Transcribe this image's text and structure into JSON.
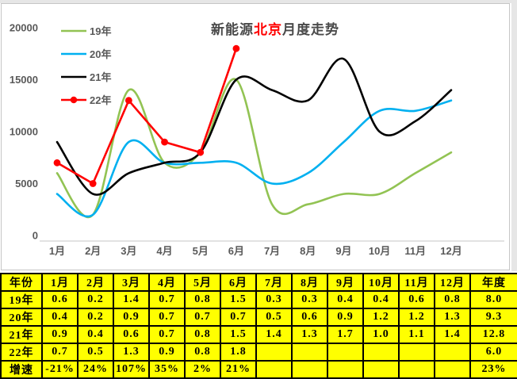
{
  "chart_data": {
    "type": "line",
    "title": "新能源北京月度走势",
    "title_parts": {
      "prefix": "新能源",
      "highlight": "北京",
      "suffix": "月度走势"
    },
    "title_highlight_color": "#ff0000",
    "x": [
      "1月",
      "2月",
      "3月",
      "4月",
      "5月",
      "6月",
      "7月",
      "8月",
      "9月",
      "10月",
      "11月",
      "12月"
    ],
    "y_ticks": [
      "0",
      "5000",
      "10000",
      "15000",
      "20000"
    ],
    "ylim": [
      0,
      20000
    ],
    "grid": false,
    "legend_position": "top-left",
    "series": [
      {
        "name": "19年",
        "color": "#92C353",
        "smooth": true,
        "markers": false,
        "values": [
          6000,
          2000,
          14000,
          7000,
          8000,
          15000,
          3000,
          3000,
          4000,
          4000,
          6000,
          8000
        ]
      },
      {
        "name": "20年",
        "color": "#00B0F0",
        "smooth": true,
        "markers": false,
        "values": [
          4000,
          2000,
          9000,
          7000,
          7000,
          7000,
          5000,
          6000,
          9000,
          12000,
          12000,
          13000
        ]
      },
      {
        "name": "21年",
        "color": "#000000",
        "smooth": true,
        "markers": false,
        "values": [
          9000,
          4000,
          6000,
          7000,
          8000,
          15000,
          14000,
          13000,
          17000,
          10000,
          11000,
          14000
        ]
      },
      {
        "name": "22年",
        "color": "#FF0000",
        "smooth": false,
        "markers": true,
        "values": [
          7000,
          5000,
          13000,
          9000,
          8000,
          18000
        ]
      }
    ]
  },
  "table": {
    "bg_color": "#ffff00",
    "border_color": "#000000",
    "columns": [
      "年份",
      "1月",
      "2月",
      "3月",
      "4月",
      "5月",
      "6月",
      "7月",
      "8月",
      "9月",
      "10月",
      "11月",
      "12月",
      "年度"
    ],
    "rows": [
      {
        "label": "19年",
        "values": [
          "0.6",
          "0.2",
          "1.4",
          "0.7",
          "0.8",
          "1.5",
          "0.3",
          "0.3",
          "0.4",
          "0.4",
          "0.6",
          "0.8",
          "8.0"
        ]
      },
      {
        "label": "20年",
        "values": [
          "0.4",
          "0.2",
          "0.9",
          "0.7",
          "0.7",
          "0.7",
          "0.5",
          "0.6",
          "0.9",
          "1.2",
          "1.2",
          "1.3",
          "9.3"
        ]
      },
      {
        "label": "21年",
        "values": [
          "0.9",
          "0.4",
          "0.6",
          "0.7",
          "0.8",
          "1.5",
          "1.4",
          "1.3",
          "1.7",
          "1.0",
          "1.1",
          "1.4",
          "12.8"
        ]
      },
      {
        "label": "22年",
        "values": [
          "0.7",
          "0.5",
          "1.3",
          "0.9",
          "0.8",
          "1.8",
          "",
          "",
          "",
          "",
          "",
          "",
          "6.0"
        ]
      },
      {
        "label": "增速",
        "values": [
          "-21%",
          "24%",
          "107%",
          "35%",
          "2%",
          "21%",
          "",
          "",
          "",
          "",
          "",
          "",
          "23%"
        ]
      }
    ]
  },
  "colors": {
    "axis_text": "#595959",
    "axis_line": "#d9d9d9",
    "title_text": "#4a4a4a",
    "panel_border": "#c6c6c6",
    "outer_background": "#e6e6e6"
  }
}
